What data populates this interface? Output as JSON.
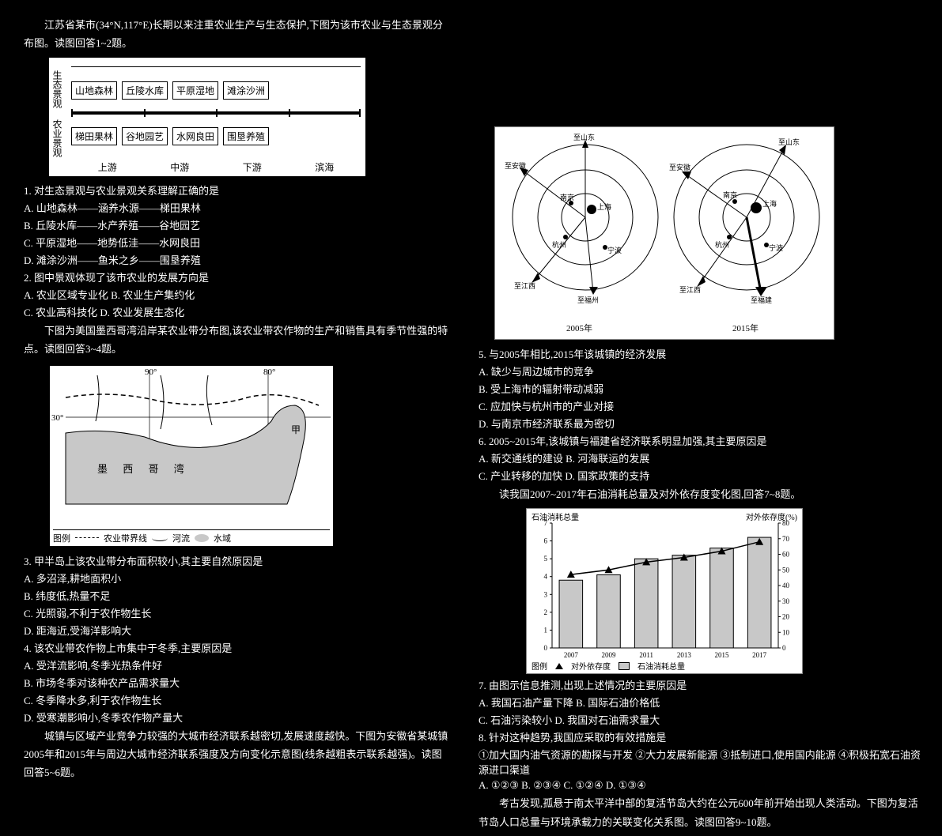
{
  "left": {
    "intro_p1": "江苏省某市(34°N,117°E)长期以来注重农业生产与生态保护,下图为该市农业与生态景观分布图。读图回答1~2题。",
    "fig1": {
      "vlabel_top": "生态景观",
      "vlabel_bot": "农业景观",
      "eco_boxes": [
        "山地森林",
        "丘陵水库",
        "平原湿地",
        "滩涂沙洲"
      ],
      "agri_boxes": [
        "梯田果林",
        "谷地园艺",
        "水网良田",
        "围垦养殖"
      ],
      "locations": [
        "上游",
        "中游",
        "下游",
        "滨海"
      ]
    },
    "q1": "1. 对生态景观与农业景观关系理解正确的是",
    "q1_opts": [
      "A. 山地森林——涵养水源——梯田果林",
      "B. 丘陵水库——水产养殖——谷地园艺",
      "C. 平原湿地——地势低洼——水网良田",
      "D. 滩涂沙洲——鱼米之乡——围垦养殖"
    ],
    "q2": "2. 图中景观体现了该市农业的发展方向是",
    "q2_opts": [
      "A. 农业区域专业化    B. 农业生产集约化",
      "C. 农业高科技化      D. 农业发展生态化"
    ],
    "intro_map": "下图为美国墨西哥湾沿岸某农业带分布图,该农业带农作物的生产和销售具有季节性强的特点。读图回答3~4题。",
    "map": {
      "lon_90": "90°",
      "lon_80": "80°",
      "lat_30": "30°",
      "sea_label": "墨  西  哥  湾",
      "label_jia": "甲",
      "legend_title": "图例",
      "legend_items": [
        "农业带界线",
        "河流",
        "水域"
      ]
    },
    "q3": "3. 甲半岛上该农业带分布面积较小,其主要自然原因是",
    "q3_opts": [
      "A. 多沼泽,耕地面积小",
      "B. 纬度低,热量不足",
      "C. 光照弱,不利于农作物生长",
      "D. 距海近,受海洋影响大"
    ],
    "q4": "4. 该农业带农作物上市集中于冬季,主要原因是",
    "q4_opts": [
      "A. 受洋流影响,冬季光热条件好",
      "B. 市场冬季对该种农产品需求量大",
      "C. 冬季降水多,利于农作物生长",
      "D. 受寒潮影响小,冬季农作物产量大"
    ],
    "intro_p3": "城镇与区域产业竞争力较强的大城市经济联系越密切,发展速度越快。下图为安徽省某城镇2005年和2015年与周边大城市经济联系强度及方向变化示意图(线条越粗表示联系越强)。读图回答5~6题。"
  },
  "right": {
    "circ": {
      "year_a": "2005年",
      "year_b": "2015年",
      "nodes_a": [
        "至山东",
        "至安徽",
        "南京",
        "上海",
        "杭州",
        "宁波",
        "至江西",
        "至福州"
      ],
      "nodes_b": [
        "至山东",
        "至安徽",
        "南京",
        "上海",
        "杭州",
        "宁波",
        "至江西",
        "至福建"
      ]
    },
    "q5": "5. 与2005年相比,2015年该城镇的经济发展",
    "q5_opts": [
      "A. 缺少与周边城市的竞争",
      "B. 受上海市的辐射带动减弱",
      "C. 应加快与杭州市的产业对接",
      "D. 与南京市经济联系最为密切"
    ],
    "q6": "6. 2005~2015年,该城镇与福建省经济联系明显加强,其主要原因是",
    "q6_opts": [
      "A. 新交通线的建设       B. 河海联运的发展",
      "C. 产业转移的加快       D. 国家政策的支持"
    ],
    "intro_bar": "读我国2007~2017年石油消耗总量及对外依存度变化图,回答7~8题。",
    "bar_chart": {
      "type": "bar+line",
      "title_left": "石油消耗总量",
      "title_right": "对外依存度(%)",
      "categories": [
        "2007",
        "2009",
        "2011",
        "2013",
        "2015",
        "2017"
      ],
      "bar_values": [
        3.8,
        4.1,
        5.0,
        5.2,
        5.6,
        6.2
      ],
      "line_values": [
        47,
        50,
        55,
        58,
        62,
        68
      ],
      "ylim_left": [
        0,
        7
      ],
      "ytick_left_step": 1,
      "ylim_right": [
        0,
        80
      ],
      "ytick_right_step": 10,
      "bar_color": "#c8c8c8",
      "bar_border": "#000000",
      "line_marker": "triangle",
      "line_color": "#000000",
      "background_color": "#ffffff",
      "legend_title": "图例",
      "legend_items": [
        "对外依存度",
        "石油消耗总量"
      ]
    },
    "q7": "7. 由图示信息推测,出现上述情况的主要原因是",
    "q7_opts": [
      "A. 我国石油产量下降      B. 国际石油价格低",
      "C. 石油污染较小          D. 我国对石油需求量大"
    ],
    "q8": "8. 针对这种趋势,我国应采取的有效措施是",
    "q8_a": "①加大国内油气资源的勘探与开发  ②大力发展新能源  ③抵制进口,使用国内能源  ④积极拓宽石油资源进口渠道",
    "q8_opts": [
      "A. ①②③    B. ②③④    C. ①②④    D. ①③④"
    ],
    "intro_p9": "考古发现,孤悬于南太平洋中部的复活节岛大约在公元600年前开始出现人类活动。下图为复活节岛人口总量与环境承载力的关联变化关系图。读图回答9~10题。"
  }
}
